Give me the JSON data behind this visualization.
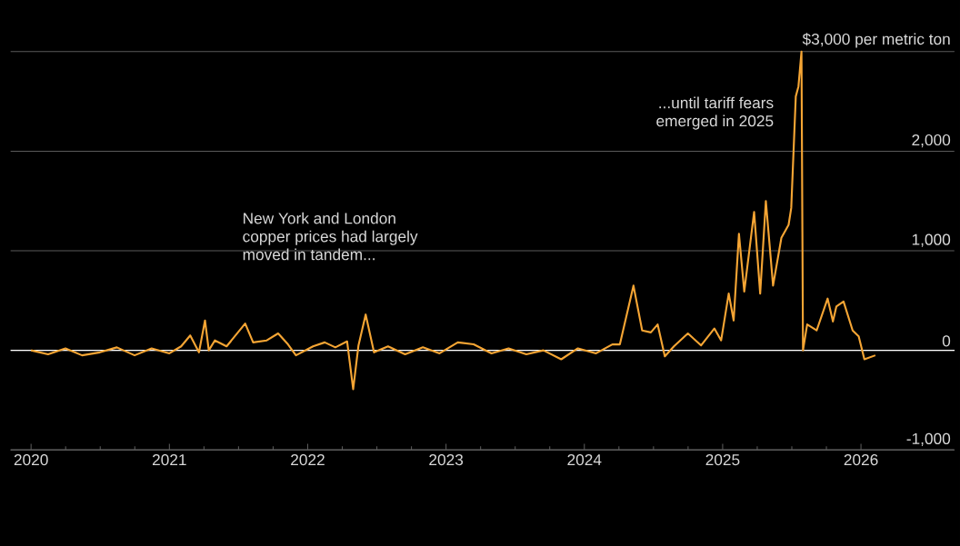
{
  "chart_data": {
    "type": "line",
    "x": [
      "2020-01-01",
      "2020-02-15",
      "2020-04-01",
      "2020-05-15",
      "2020-07-01",
      "2020-08-15",
      "2020-10-01",
      "2020-11-15",
      "2021-01-01",
      "2021-02-01",
      "2021-02-25",
      "2021-03-20",
      "2021-04-05",
      "2021-04-15",
      "2021-05-01",
      "2021-06-01",
      "2021-07-20",
      "2021-08-10",
      "2021-09-15",
      "2021-10-15",
      "2021-11-10",
      "2021-12-01",
      "2022-01-15",
      "2022-02-15",
      "2022-03-15",
      "2022-04-15",
      "2022-05-01",
      "2022-05-15",
      "2022-06-03",
      "2022-06-25",
      "2022-08-01",
      "2022-09-15",
      "2022-11-01",
      "2022-12-15",
      "2023-02-01",
      "2023-03-15",
      "2023-05-01",
      "2023-06-15",
      "2023-08-01",
      "2023-09-15",
      "2023-11-01",
      "2023-12-15",
      "2024-02-01",
      "2024-03-15",
      "2024-04-04",
      "2024-05-10",
      "2024-06-02",
      "2024-06-25",
      "2024-07-13",
      "2024-08-01",
      "2024-08-25",
      "2024-10-01",
      "2024-11-05",
      "2024-12-10",
      "2024-12-28",
      "2025-01-17",
      "2025-01-30",
      "2025-02-13",
      "2025-02-27",
      "2025-03-25",
      "2025-04-10",
      "2025-04-25",
      "2025-05-14",
      "2025-06-05",
      "2025-06-24",
      "2025-07-01",
      "2025-07-13",
      "2025-07-20",
      "2025-07-28",
      "2025-08-01",
      "2025-08-12",
      "2025-09-06",
      "2025-10-05",
      "2025-10-19",
      "2025-10-28",
      "2025-11-16",
      "2025-12-10",
      "2025-12-26",
      "2026-01-10",
      "2026-02-08"
    ],
    "series": [
      {
        "color": "#f5a534",
        "values": [
          0,
          -40,
          20,
          -50,
          -20,
          30,
          -50,
          20,
          -30,
          40,
          150,
          -20,
          300,
          0,
          100,
          40,
          270,
          80,
          100,
          170,
          60,
          -50,
          40,
          80,
          30,
          90,
          -390,
          50,
          360,
          -20,
          40,
          -40,
          30,
          -30,
          80,
          60,
          -30,
          20,
          -40,
          0,
          -90,
          20,
          -30,
          60,
          60,
          650,
          200,
          180,
          260,
          -60,
          40,
          170,
          50,
          220,
          100,
          570,
          300,
          1170,
          590,
          1390,
          570,
          1500,
          650,
          1130,
          1260,
          1430,
          2550,
          2650,
          3000,
          0,
          260,
          200,
          520,
          290,
          440,
          490,
          200,
          140,
          -90,
          -50
        ]
      }
    ],
    "xlim": [
      "2019-11-08",
      "2026-09-05"
    ],
    "xticks": [
      {
        "value": "2020-01-01",
        "label": "2020"
      },
      {
        "value": "2021-01-01",
        "label": "2021"
      },
      {
        "value": "2022-01-01",
        "label": "2022"
      },
      {
        "value": "2023-01-01",
        "label": "2023"
      },
      {
        "value": "2024-01-01",
        "label": "2024"
      },
      {
        "value": "2025-01-01",
        "label": "2025"
      },
      {
        "value": "2026-01-01",
        "label": "2026"
      }
    ],
    "ylim": [
      -1000,
      3000
    ],
    "yticks": [
      {
        "value": -1000,
        "label": "-1,000"
      },
      {
        "value": 0,
        "label": "0"
      },
      {
        "value": 1000,
        "label": "1,000"
      },
      {
        "value": 2000,
        "label": "2,000"
      },
      {
        "value": 3000,
        "label": "$3,000 per metric ton"
      }
    ],
    "grid": "y",
    "ref_lines": [
      {
        "axis": "y",
        "value": 0,
        "color": "#ffffff"
      }
    ],
    "annotations": [
      "New York and London copper prices had largely moved in tandem...",
      "...until tariff fears emerged in 2025"
    ],
    "marker": "none",
    "line_style": "solid"
  }
}
